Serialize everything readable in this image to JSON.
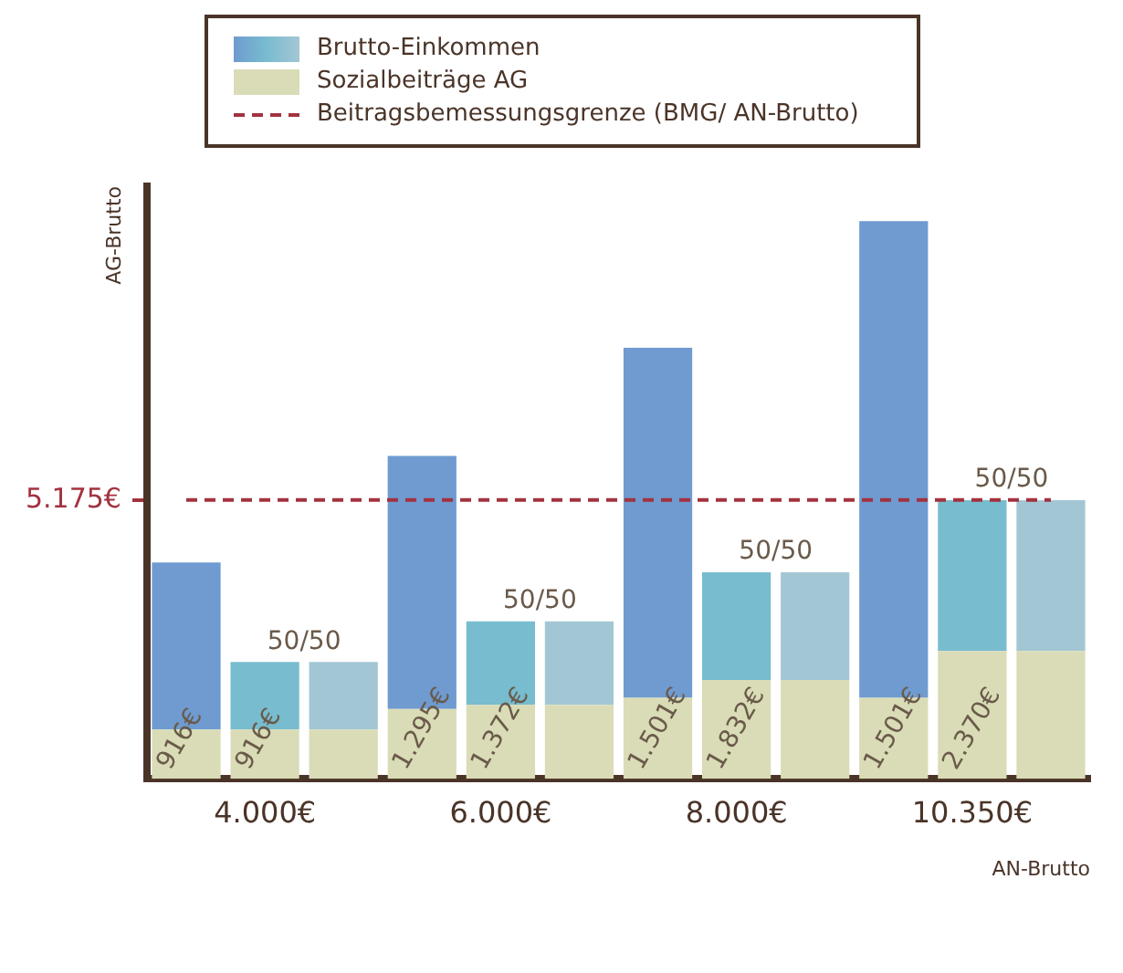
{
  "chart_data": {
    "type": "bar",
    "stacked": true,
    "categories": [
      null,
      "4.000€",
      null,
      null,
      "6.000€",
      null,
      null,
      "8.000€",
      null,
      null,
      "10.350€",
      null
    ],
    "xlabel": "AN-Brutto",
    "ylabel": "AG-Brutto",
    "ylim": [
      0,
      11000
    ],
    "yticks": [
      {
        "value": 5175,
        "label": "5.175€"
      }
    ],
    "grid": false,
    "legend": "top",
    "marker": "none",
    "series": [
      {
        "name": "Sozialbeiträge AG",
        "color": "#d9dcb6",
        "values": [
          916,
          916,
          916,
          1295,
          1372,
          1372,
          1501,
          1832,
          1832,
          1501,
          2370,
          2370
        ],
        "value_labels": [
          "916€",
          "916€",
          null,
          "1.295€",
          "1.372€",
          null,
          "1.501€",
          "1.832€",
          null,
          "1.501€",
          "2.370€",
          null
        ]
      },
      {
        "name": "Brutto-Einkommen",
        "colors": [
          "#6f9bd0",
          "#78bccf",
          "#a3c6d4",
          "#6f9bd0",
          "#78bccf",
          "#a3c6d4",
          "#6f9bd0",
          "#78bccf",
          "#a3c6d4",
          "#6f9bd0",
          "#78bccf",
          "#a3c6d4"
        ],
        "values": [
          3100,
          1250,
          1250,
          4700,
          1550,
          1550,
          6500,
          2000,
          2000,
          8850,
          2800,
          2800
        ]
      },
      {
        "name": "Beitragsbemessungsgrenze (BMG/ AN-Brutto)",
        "type": "line",
        "color": "#a3323f",
        "line_style": "dashed",
        "values": [
          5175,
          5175,
          5175,
          5175,
          5175,
          5175,
          5175,
          5175,
          5175,
          5175,
          5175,
          5175
        ]
      }
    ],
    "annotations": [
      "50/50",
      "50/50",
      "50/50",
      "50/50"
    ]
  }
}
